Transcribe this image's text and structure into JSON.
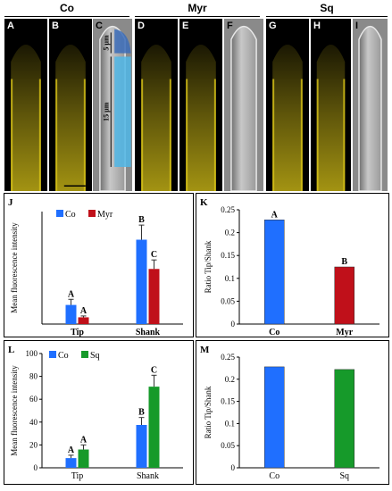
{
  "figure": {
    "groups": [
      {
        "title": "Co",
        "panels": [
          "A",
          "B",
          "C"
        ]
      },
      {
        "title": "Myr",
        "panels": [
          "D",
          "E",
          "F"
        ]
      },
      {
        "title": "Sq",
        "panels": [
          "G",
          "H",
          "I"
        ]
      }
    ],
    "panel_c_annotations": {
      "tip_length": "5 µm",
      "shank_length": "15 µm"
    },
    "colors": {
      "co": "#1f6fff",
      "myr": "#c0101a",
      "sq": "#169a2a",
      "fluorescence": "#d9c418",
      "tip_overlay": "#3b6cb8",
      "shank_overlay": "#4fb6e6"
    }
  },
  "chart_data": [
    {
      "panel": "J",
      "type": "bar",
      "categories": [
        "Tip",
        "Shank"
      ],
      "series": [
        {
          "name": "Co",
          "values": [
            8.5,
            37.5
          ],
          "errors": [
            2.5,
            6.5
          ],
          "letters": [
            "A",
            "B"
          ]
        },
        {
          "name": "Myr",
          "values": [
            3.0,
            24.5
          ],
          "errors": [
            0.6,
            4.0
          ],
          "letters": [
            "A",
            "C"
          ]
        }
      ],
      "ylabel": "Mean fluorescence intensity",
      "ylim": [
        0,
        50
      ]
    },
    {
      "panel": "K",
      "type": "bar",
      "categories": [
        "Co",
        "Myr"
      ],
      "values": [
        0.228,
        0.125
      ],
      "letters": [
        "A",
        "B"
      ],
      "ylabel": "Ratio Tip/Shank",
      "ylim": [
        0,
        0.25
      ],
      "yticks": [
        "0",
        "0.05",
        "0.1",
        "0.15",
        "0.2",
        "0.25"
      ]
    },
    {
      "panel": "L",
      "type": "bar",
      "categories": [
        "Tip",
        "Shank"
      ],
      "series": [
        {
          "name": "Co",
          "values": [
            8.5,
            37.5
          ],
          "errors": [
            2.5,
            6.5
          ],
          "letters": [
            "A",
            "B"
          ]
        },
        {
          "name": "Sq",
          "values": [
            16.0,
            71.0
          ],
          "errors": [
            4.0,
            10.0
          ],
          "letters": [
            "A",
            "C"
          ]
        }
      ],
      "ylabel": "Mean fluorescence intensity",
      "ylim": [
        0,
        100
      ],
      "yticks": [
        "0",
        "20",
        "40",
        "60",
        "80",
        "100"
      ]
    },
    {
      "panel": "M",
      "type": "bar",
      "categories": [
        "Co",
        "Sq"
      ],
      "values": [
        0.228,
        0.222
      ],
      "ylabel": "Ratio Tip/Shank",
      "ylim": [
        0,
        0.25
      ],
      "yticks": [
        "0",
        "0.05",
        "0.1",
        "0.15",
        "0.2",
        "0.25"
      ]
    }
  ]
}
